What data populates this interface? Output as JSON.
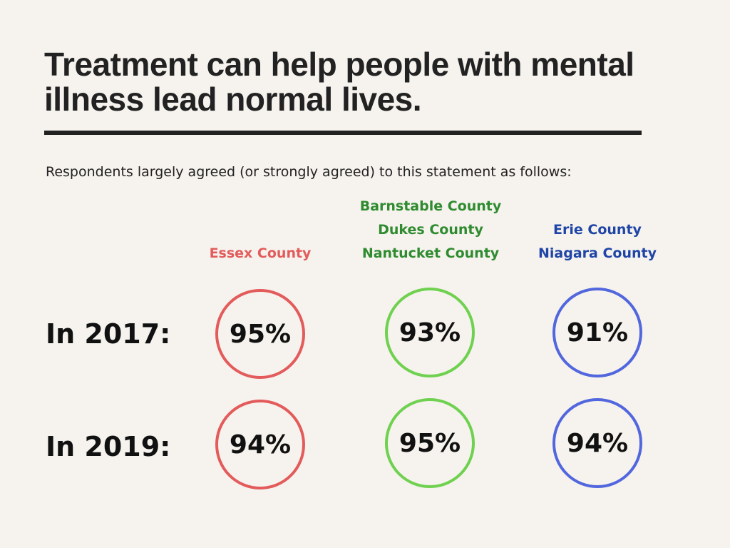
{
  "title": "Treatment can help people with mental illness lead normal lives.",
  "subtitle": "Respondents largely agreed (or strongly agreed) to this statement as follows:",
  "colors": {
    "essex": "#e35b5b",
    "cape": "#6fd14f",
    "cape_text": "#2f8b2f",
    "erie": "#5267dd",
    "erie_text": "#1f45a6"
  },
  "chart_data": {
    "type": "table",
    "title": "Treatment can help people with mental illness lead normal lives.",
    "subtitle": "Respondents largely agreed (or strongly agreed) to this statement as follows:",
    "columns": [
      {
        "lines": [
          "Essex County"
        ],
        "color": "#e35b5b"
      },
      {
        "lines": [
          "Barnstable County",
          "Dukes County",
          "Nantucket County"
        ],
        "color": "#2f8b2f"
      },
      {
        "lines": [
          "Erie County",
          "Niagara County"
        ],
        "color": "#1f45a6"
      }
    ],
    "rows": [
      {
        "label": "In 2017:",
        "values": [
          "95%",
          "93%",
          "91%"
        ]
      },
      {
        "label": "In 2019:",
        "values": [
          "94%",
          "95%",
          "94%"
        ]
      }
    ]
  }
}
